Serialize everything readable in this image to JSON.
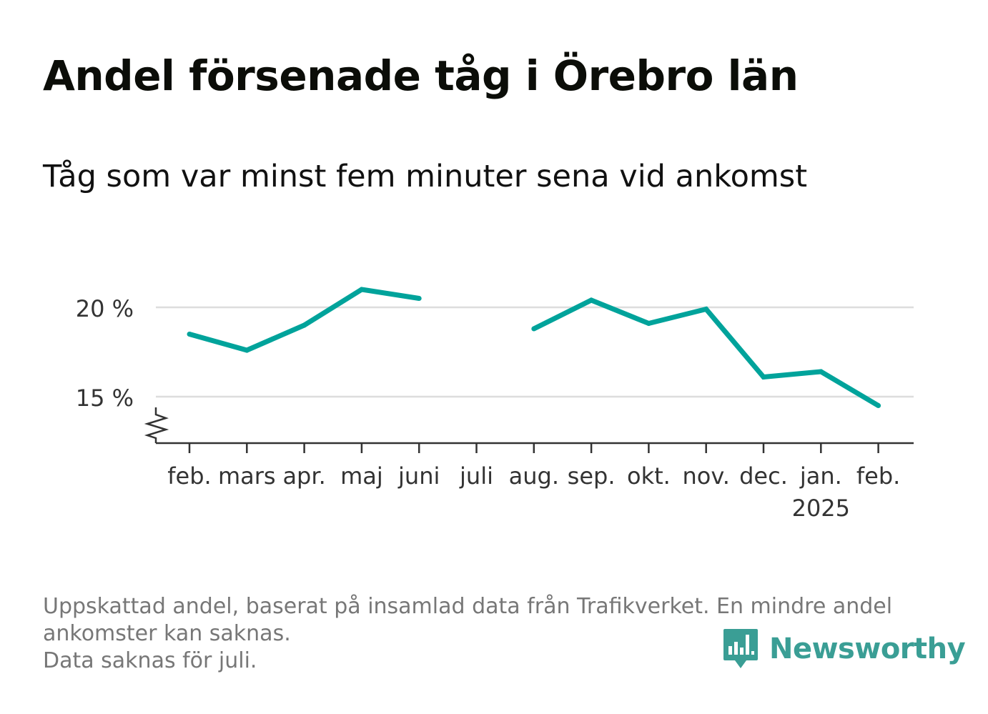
{
  "title": "Andel försenade tåg i Örebro län",
  "subtitle": "Tåg som var minst fem minuter sena vid ankomst",
  "notes": [
    "Uppskattad andel, baserat på insamlad data från Trafikverket. En mindre andel",
    "ankomster kan saknas.",
    "Data saknas för juli."
  ],
  "logo": {
    "text": "Newsworthy"
  },
  "colors": {
    "line": "#00a39b",
    "grid": "#dddddd",
    "axis": "#333333",
    "tick_label": "#333333"
  },
  "chart_data": {
    "type": "line",
    "categories": [
      "feb.",
      "mars",
      "apr.",
      "maj",
      "juni",
      "juli",
      "aug.",
      "sep.",
      "okt.",
      "nov.",
      "dec.",
      "jan.",
      "feb."
    ],
    "year_label": {
      "text": "2025",
      "under_category_index": 11
    },
    "series": [
      {
        "values": [
          18.5,
          17.6,
          19.0,
          21.0,
          20.5,
          null,
          18.8,
          20.4,
          19.1,
          19.9,
          16.1,
          16.4,
          14.5
        ]
      }
    ],
    "y_ticks": [
      15,
      20
    ],
    "y_tick_labels": [
      "15 %",
      "20 %"
    ],
    "ylim": [
      12.4,
      22.5
    ],
    "axis_break": true,
    "grid": true
  }
}
